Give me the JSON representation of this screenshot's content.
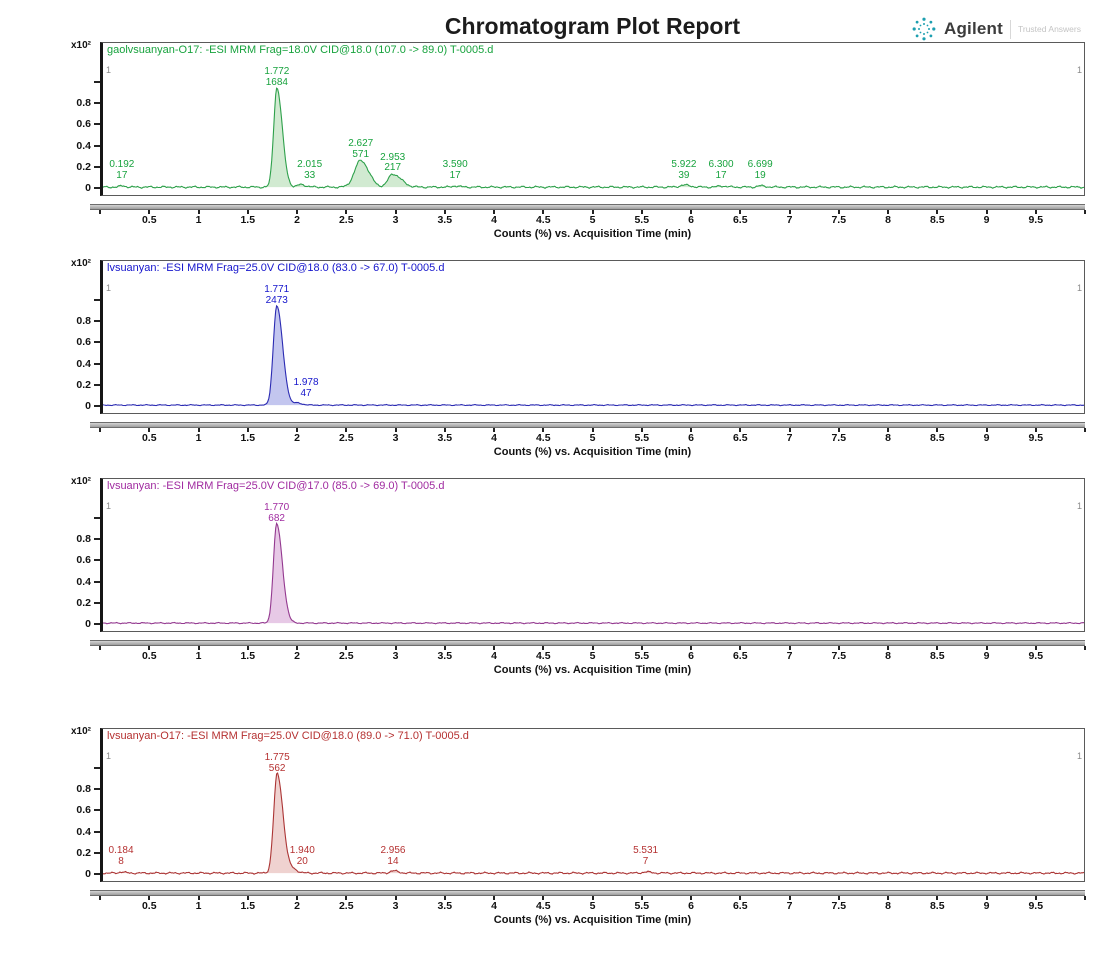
{
  "header": {
    "title": "Chromatogram Plot Report",
    "logo": {
      "brand": "Agilent",
      "tagline": "Trusted Answers",
      "spark_color": "#1d9fb0"
    }
  },
  "axis": {
    "y_scale_label": "x10²",
    "y_ticks": [
      {
        "value": 1.0,
        "label": ""
      },
      {
        "value": 0.8,
        "label": "0.8"
      },
      {
        "value": 0.6,
        "label": "0.6"
      },
      {
        "value": 0.4,
        "label": "0.4"
      },
      {
        "value": 0.2,
        "label": "0.2"
      },
      {
        "value": 0.0,
        "label": "0"
      }
    ],
    "x_ticks": [
      {
        "value": 0,
        "label": ""
      },
      {
        "value": 0.5,
        "label": "0.5"
      },
      {
        "value": 1,
        "label": "1"
      },
      {
        "value": 1.5,
        "label": "1.5"
      },
      {
        "value": 2,
        "label": "2"
      },
      {
        "value": 2.5,
        "label": "2.5"
      },
      {
        "value": 3,
        "label": "3"
      },
      {
        "value": 3.5,
        "label": "3.5"
      },
      {
        "value": 4,
        "label": "4"
      },
      {
        "value": 4.5,
        "label": "4.5"
      },
      {
        "value": 5,
        "label": "5"
      },
      {
        "value": 5.5,
        "label": "5.5"
      },
      {
        "value": 6,
        "label": "6"
      },
      {
        "value": 6.5,
        "label": "6.5"
      },
      {
        "value": 7,
        "label": "7"
      },
      {
        "value": 7.5,
        "label": "7.5"
      },
      {
        "value": 8,
        "label": "8"
      },
      {
        "value": 8.5,
        "label": "8.5"
      },
      {
        "value": 9,
        "label": "9"
      },
      {
        "value": 9.5,
        "label": "9.5"
      },
      {
        "value": 10,
        "label": ""
      }
    ],
    "x_title": "Counts (%) vs. Acquisition Time (min)",
    "corner_marker": "1"
  },
  "chart_data": [
    {
      "type": "area",
      "title": "gaolvsuanyan-O17: -ESI MRM Frag=18.0V CID@18.0 (107.0 -> 89.0) T-0005.d",
      "xlabel": "Counts (%) vs. Acquisition Time (min)",
      "x_range": [
        0,
        10
      ],
      "y_scale": "x10^2",
      "line_color": "#2da04a",
      "fill_color": "#c9e6c9",
      "text_color": "#18a33e",
      "noise": 0.012,
      "peaks": [
        {
          "rt": 0.192,
          "counts": 17,
          "height": 0.013,
          "sl": 0.02,
          "sr": 0.035,
          "dx": 0
        },
        {
          "rt": 1.772,
          "counts": 1684,
          "height": 0.95,
          "sl": 0.032,
          "sr": 0.055,
          "dx": 0
        },
        {
          "rt": 2.015,
          "counts": 33,
          "height": 0.025,
          "sl": 0.028,
          "sr": 0.05,
          "dx": 9
        },
        {
          "rt": 2.627,
          "counts": 571,
          "height": 0.255,
          "sl": 0.062,
          "sr": 0.08,
          "dx": 0
        },
        {
          "rt": 2.953,
          "counts": 217,
          "height": 0.125,
          "sl": 0.045,
          "sr": 0.085,
          "dx": 0
        },
        {
          "rt": 3.59,
          "counts": 17,
          "height": 0.012,
          "sl": 0.025,
          "sr": 0.04,
          "dx": 0
        },
        {
          "rt": 5.922,
          "counts": 39,
          "height": 0.02,
          "sl": 0.04,
          "sr": 0.06,
          "dx": 0
        },
        {
          "rt": 6.3,
          "counts": 17,
          "height": 0.011,
          "sl": 0.03,
          "sr": 0.05,
          "dx": 0
        },
        {
          "rt": 6.699,
          "counts": 19,
          "height": 0.012,
          "sl": 0.03,
          "sr": 0.05,
          "dx": 0
        }
      ]
    },
    {
      "type": "area",
      "title": "lvsuanyan: -ESI MRM Frag=25.0V CID@18.0 (83.0 -> 67.0) T-0005.d",
      "xlabel": "Counts (%) vs. Acquisition Time (min)",
      "x_range": [
        0,
        10
      ],
      "y_scale": "x10^2",
      "line_color": "#2a2ab2",
      "fill_color": "#b8bcec",
      "text_color": "#1616cc",
      "noise": 0.006,
      "peaks": [
        {
          "rt": 1.771,
          "counts": 2473,
          "height": 0.95,
          "sl": 0.035,
          "sr": 0.06,
          "dx": 0
        },
        {
          "rt": 1.978,
          "counts": 47,
          "height": 0.02,
          "sl": 0.028,
          "sr": 0.05,
          "dx": 9
        }
      ]
    },
    {
      "type": "area",
      "title": "lvsuanyan: -ESI MRM Frag=25.0V CID@17.0 (85.0 -> 69.0) T-0005.d",
      "xlabel": "Counts (%) vs. Acquisition Time (min)",
      "x_range": [
        0,
        10
      ],
      "y_scale": "x10^2",
      "line_color": "#93388f",
      "fill_color": "#e3bfe2",
      "text_color": "#a02ba0",
      "noise": 0.007,
      "peaks": [
        {
          "rt": 1.77,
          "counts": 682,
          "height": 0.95,
          "sl": 0.033,
          "sr": 0.058,
          "dx": 0
        }
      ]
    },
    {
      "type": "area",
      "title": "lvsuanyan-O17: -ESI MRM Frag=25.0V CID@18.0 (89.0 -> 71.0) T-0005.d",
      "xlabel": "Counts (%) vs. Acquisition Time (min)",
      "x_range": [
        0,
        10
      ],
      "y_scale": "x10^2",
      "line_color": "#ab3434",
      "fill_color": "#eccac8",
      "text_color": "#b53131",
      "noise": 0.011,
      "peaks": [
        {
          "rt": 0.184,
          "counts": 8,
          "height": 0.012,
          "sl": 0.02,
          "sr": 0.035,
          "dx": 0
        },
        {
          "rt": 1.775,
          "counts": 562,
          "height": 0.95,
          "sl": 0.035,
          "sr": 0.06,
          "dx": 0
        },
        {
          "rt": 1.94,
          "counts": 20,
          "height": 0.03,
          "sl": 0.028,
          "sr": 0.05,
          "dx": 9
        },
        {
          "rt": 2.956,
          "counts": 14,
          "height": 0.022,
          "sl": 0.03,
          "sr": 0.05,
          "dx": 0
        },
        {
          "rt": 5.531,
          "counts": 7,
          "height": 0.012,
          "sl": 0.03,
          "sr": 0.05,
          "dx": 0
        }
      ]
    }
  ]
}
